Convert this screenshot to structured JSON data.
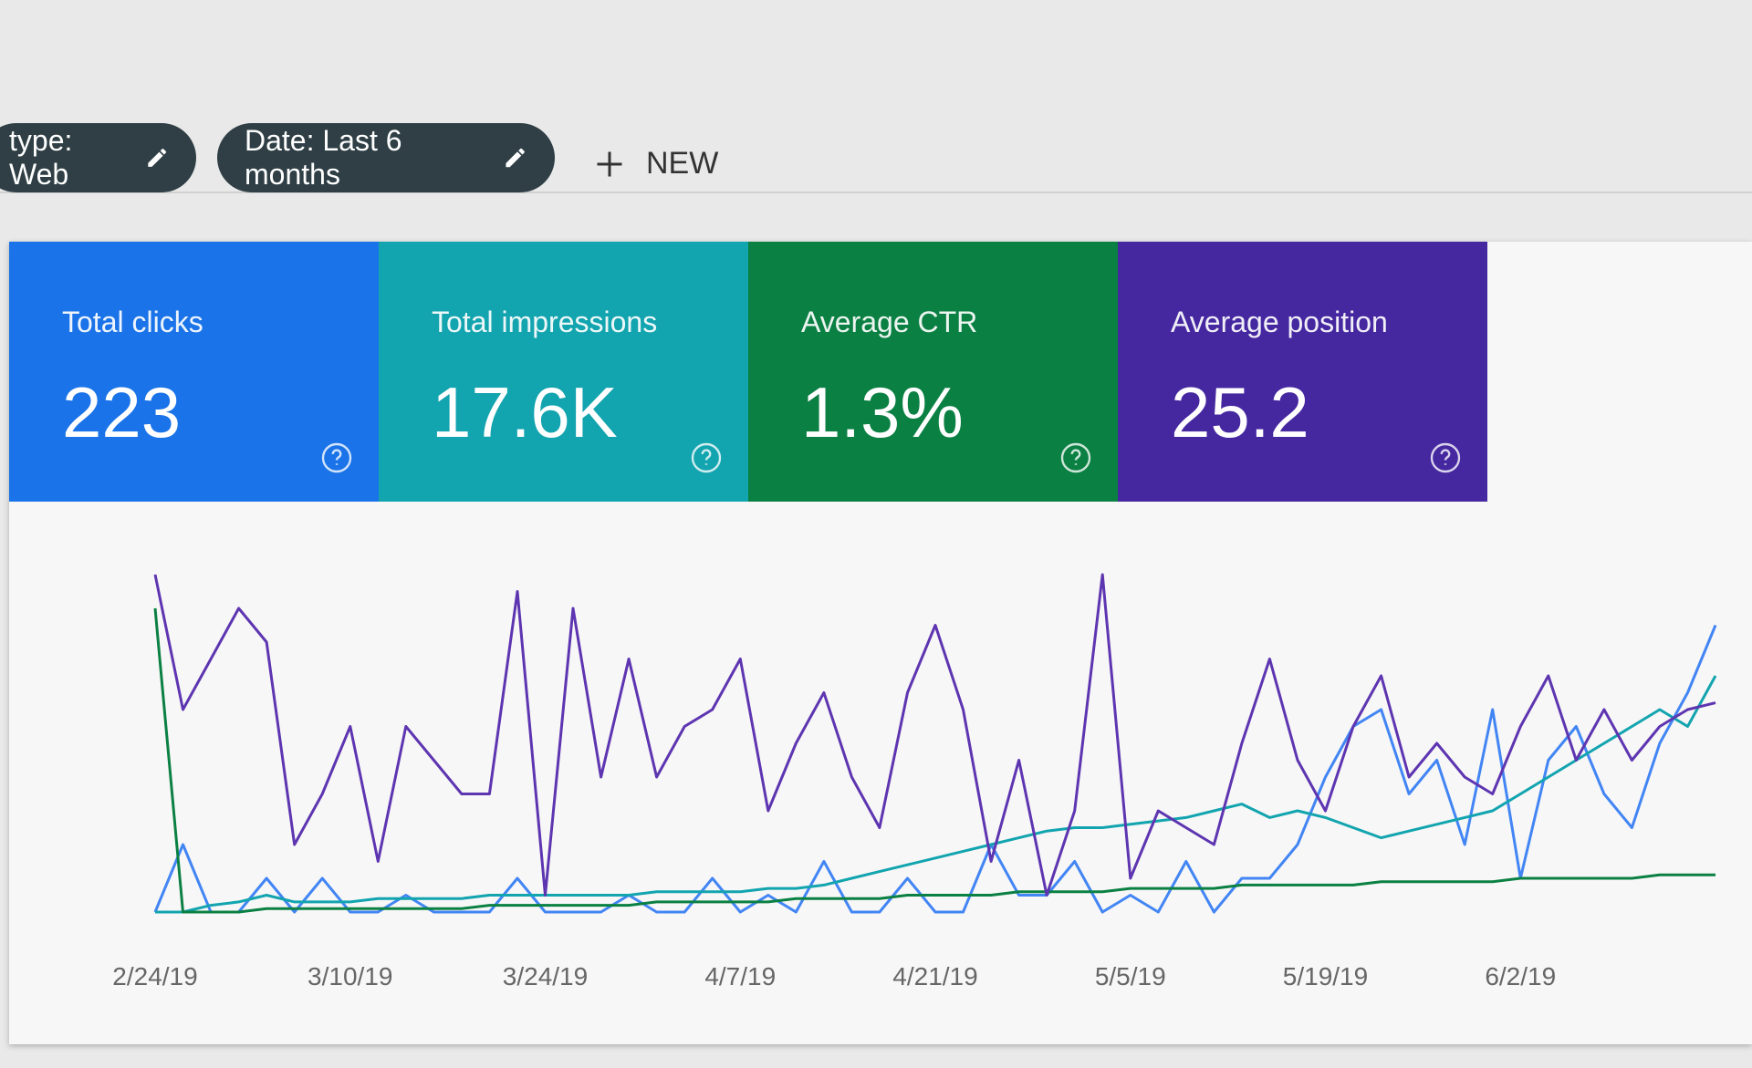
{
  "filters": [
    {
      "label": "type: Web"
    },
    {
      "label": "Date: Last 6 months"
    }
  ],
  "new_button": "NEW",
  "metrics": [
    {
      "label": "Total clicks",
      "value": "223",
      "color": "#1a73e8"
    },
    {
      "label": "Total impressions",
      "value": "17.6K",
      "color": "#12a4af"
    },
    {
      "label": "Average CTR",
      "value": "1.3%",
      "color": "#0b8043"
    },
    {
      "label": "Average position",
      "value": "25.2",
      "color": "#4527a0"
    }
  ],
  "chart_data": {
    "type": "line",
    "categories": [
      "2/24/19",
      null,
      null,
      null,
      null,
      null,
      null,
      "3/10/19",
      null,
      null,
      null,
      null,
      null,
      null,
      "3/24/19",
      null,
      null,
      null,
      null,
      null,
      null,
      "4/7/19",
      null,
      null,
      null,
      null,
      null,
      null,
      "4/21/19",
      null,
      null,
      null,
      null,
      null,
      null,
      "5/5/19",
      null,
      null,
      null,
      null,
      null,
      null,
      "5/19/19",
      null,
      null,
      null,
      null,
      null,
      null,
      "6/2/19",
      null,
      null,
      null,
      null,
      null,
      null,
      null
    ],
    "ylim": [
      0,
      100
    ],
    "series": [
      {
        "color": "#4285f4",
        "values": [
          0,
          20,
          0,
          0,
          10,
          0,
          10,
          0,
          0,
          5,
          0,
          0,
          0,
          10,
          0,
          0,
          0,
          5,
          0,
          0,
          10,
          0,
          5,
          0,
          15,
          0,
          0,
          10,
          0,
          0,
          20,
          5,
          5,
          15,
          0,
          5,
          0,
          15,
          0,
          10,
          10,
          20,
          40,
          55,
          60,
          35,
          45,
          20,
          60,
          10,
          45,
          55,
          35,
          25,
          50,
          65,
          85
        ]
      },
      {
        "color": "#12a4af",
        "values": [
          0,
          0,
          2,
          3,
          5,
          3,
          3,
          3,
          4,
          4,
          4,
          4,
          5,
          5,
          5,
          5,
          5,
          5,
          6,
          6,
          6,
          6,
          7,
          7,
          8,
          10,
          12,
          14,
          16,
          18,
          20,
          22,
          24,
          25,
          25,
          26,
          27,
          28,
          30,
          32,
          28,
          30,
          28,
          25,
          22,
          24,
          26,
          28,
          30,
          35,
          40,
          45,
          50,
          55,
          60,
          55,
          70
        ]
      },
      {
        "color": "#0b8043",
        "values": [
          90,
          0,
          0,
          0,
          1,
          1,
          1,
          1,
          1,
          1,
          1,
          1,
          2,
          2,
          2,
          2,
          2,
          2,
          3,
          3,
          3,
          3,
          3,
          4,
          4,
          4,
          4,
          5,
          5,
          5,
          5,
          6,
          6,
          6,
          6,
          7,
          7,
          7,
          7,
          8,
          8,
          8,
          8,
          8,
          9,
          9,
          9,
          9,
          9,
          10,
          10,
          10,
          10,
          10,
          11,
          11,
          11
        ]
      },
      {
        "color": "#5e35b1",
        "values": [
          100,
          60,
          75,
          90,
          80,
          20,
          35,
          55,
          15,
          55,
          45,
          35,
          35,
          95,
          5,
          90,
          40,
          75,
          40,
          55,
          60,
          75,
          30,
          50,
          65,
          40,
          25,
          65,
          85,
          60,
          15,
          45,
          5,
          30,
          100,
          10,
          30,
          25,
          20,
          50,
          75,
          45,
          30,
          55,
          70,
          40,
          50,
          40,
          35,
          55,
          70,
          45,
          60,
          45,
          55,
          60,
          62
        ]
      }
    ]
  }
}
